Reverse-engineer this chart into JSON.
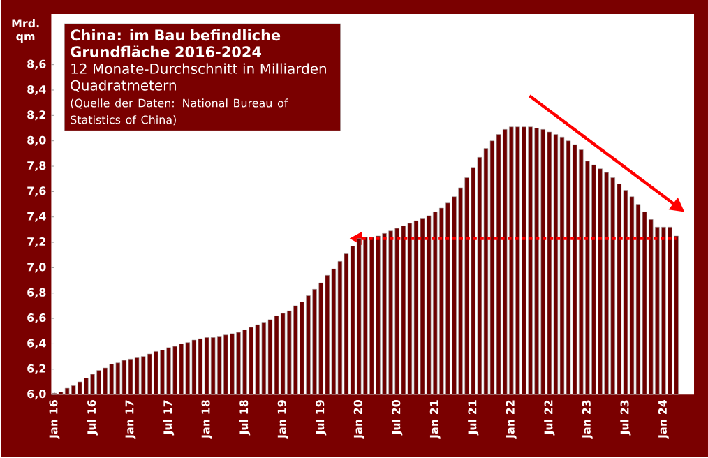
{
  "chart_data": {
    "type": "bar",
    "title": "China: im Bau befindliche Grundfläche 2016-2024",
    "subtitle": "12 Monate-Durchschnitt in Milliarden Quadratmetern",
    "annotations": [
      "(Quelle der Daten: National Bureau of Statistics of China)"
    ],
    "ylabel": "Mrd. qm",
    "categories": [
      "Jan 16",
      null,
      null,
      null,
      null,
      null,
      "Jul 16",
      null,
      null,
      null,
      null,
      null,
      "Jan 17",
      null,
      null,
      null,
      null,
      null,
      "Jul 17",
      null,
      null,
      null,
      null,
      null,
      "Jan 18",
      null,
      null,
      null,
      null,
      null,
      "Jul 18",
      null,
      null,
      null,
      null,
      null,
      "Jan 19",
      null,
      null,
      null,
      null,
      null,
      "Jul 19",
      null,
      null,
      null,
      null,
      null,
      "Jan 20",
      null,
      null,
      null,
      null,
      null,
      "Jul 20",
      null,
      null,
      null,
      null,
      null,
      "Jan 21",
      null,
      null,
      null,
      null,
      null,
      "Jul 21",
      null,
      null,
      null,
      null,
      null,
      "Jan 22",
      null,
      null,
      null,
      null,
      null,
      "Jul 22",
      null,
      null,
      null,
      null,
      null,
      "Jan 23",
      null,
      null,
      null,
      null,
      null,
      "Jul 23",
      null,
      null,
      null,
      null,
      null,
      "Jan 24",
      null,
      null
    ],
    "values": [
      6.01,
      6.02,
      6.05,
      6.07,
      6.1,
      6.13,
      6.16,
      6.19,
      6.21,
      6.24,
      6.25,
      6.27,
      6.28,
      6.29,
      6.3,
      6.32,
      6.34,
      6.35,
      6.37,
      6.38,
      6.4,
      6.41,
      6.43,
      6.44,
      6.45,
      6.45,
      6.46,
      6.47,
      6.48,
      6.49,
      6.51,
      6.53,
      6.55,
      6.57,
      6.59,
      6.62,
      6.64,
      6.66,
      6.7,
      6.73,
      6.78,
      6.83,
      6.88,
      6.94,
      6.99,
      7.05,
      7.11,
      7.17,
      7.23,
      7.24,
      7.24,
      7.25,
      7.27,
      7.29,
      7.31,
      7.33,
      7.35,
      7.37,
      7.39,
      7.41,
      7.44,
      7.47,
      7.51,
      7.56,
      7.63,
      7.71,
      7.79,
      7.87,
      7.94,
      8.0,
      8.05,
      8.09,
      8.11,
      8.11,
      8.11,
      8.11,
      8.1,
      8.09,
      8.07,
      8.05,
      8.03,
      8.0,
      7.97,
      7.93,
      7.84,
      7.81,
      7.78,
      7.75,
      7.71,
      7.66,
      7.61,
      7.56,
      7.5,
      7.44,
      7.38,
      7.32,
      7.32,
      7.32,
      7.25
    ],
    "color": "#6e0000",
    "ylim": [
      6.0,
      9.0
    ],
    "yticks": [
      {
        "value": 6.0,
        "label": "6,0"
      },
      {
        "value": 6.2,
        "label": "6,2"
      },
      {
        "value": 6.4,
        "label": "6,4"
      },
      {
        "value": 6.6,
        "label": "6,6"
      },
      {
        "value": 6.8,
        "label": "6,8"
      },
      {
        "value": 7.0,
        "label": "7,0"
      },
      {
        "value": 7.2,
        "label": "7,2"
      },
      {
        "value": 7.4,
        "label": "7,4"
      },
      {
        "value": 7.6,
        "label": "7,6"
      },
      {
        "value": 7.8,
        "label": "7,8"
      },
      {
        "value": 8.0,
        "label": "8,0"
      },
      {
        "value": 8.2,
        "label": "8,2"
      },
      {
        "value": 8.4,
        "label": "8,4"
      },
      {
        "value": 8.6,
        "label": "8,6"
      }
    ],
    "ref_lines": [
      {
        "axis": "y",
        "value": 7.23,
        "color": "#ff0000",
        "line_style": "dotted"
      }
    ],
    "grid": false
  }
}
